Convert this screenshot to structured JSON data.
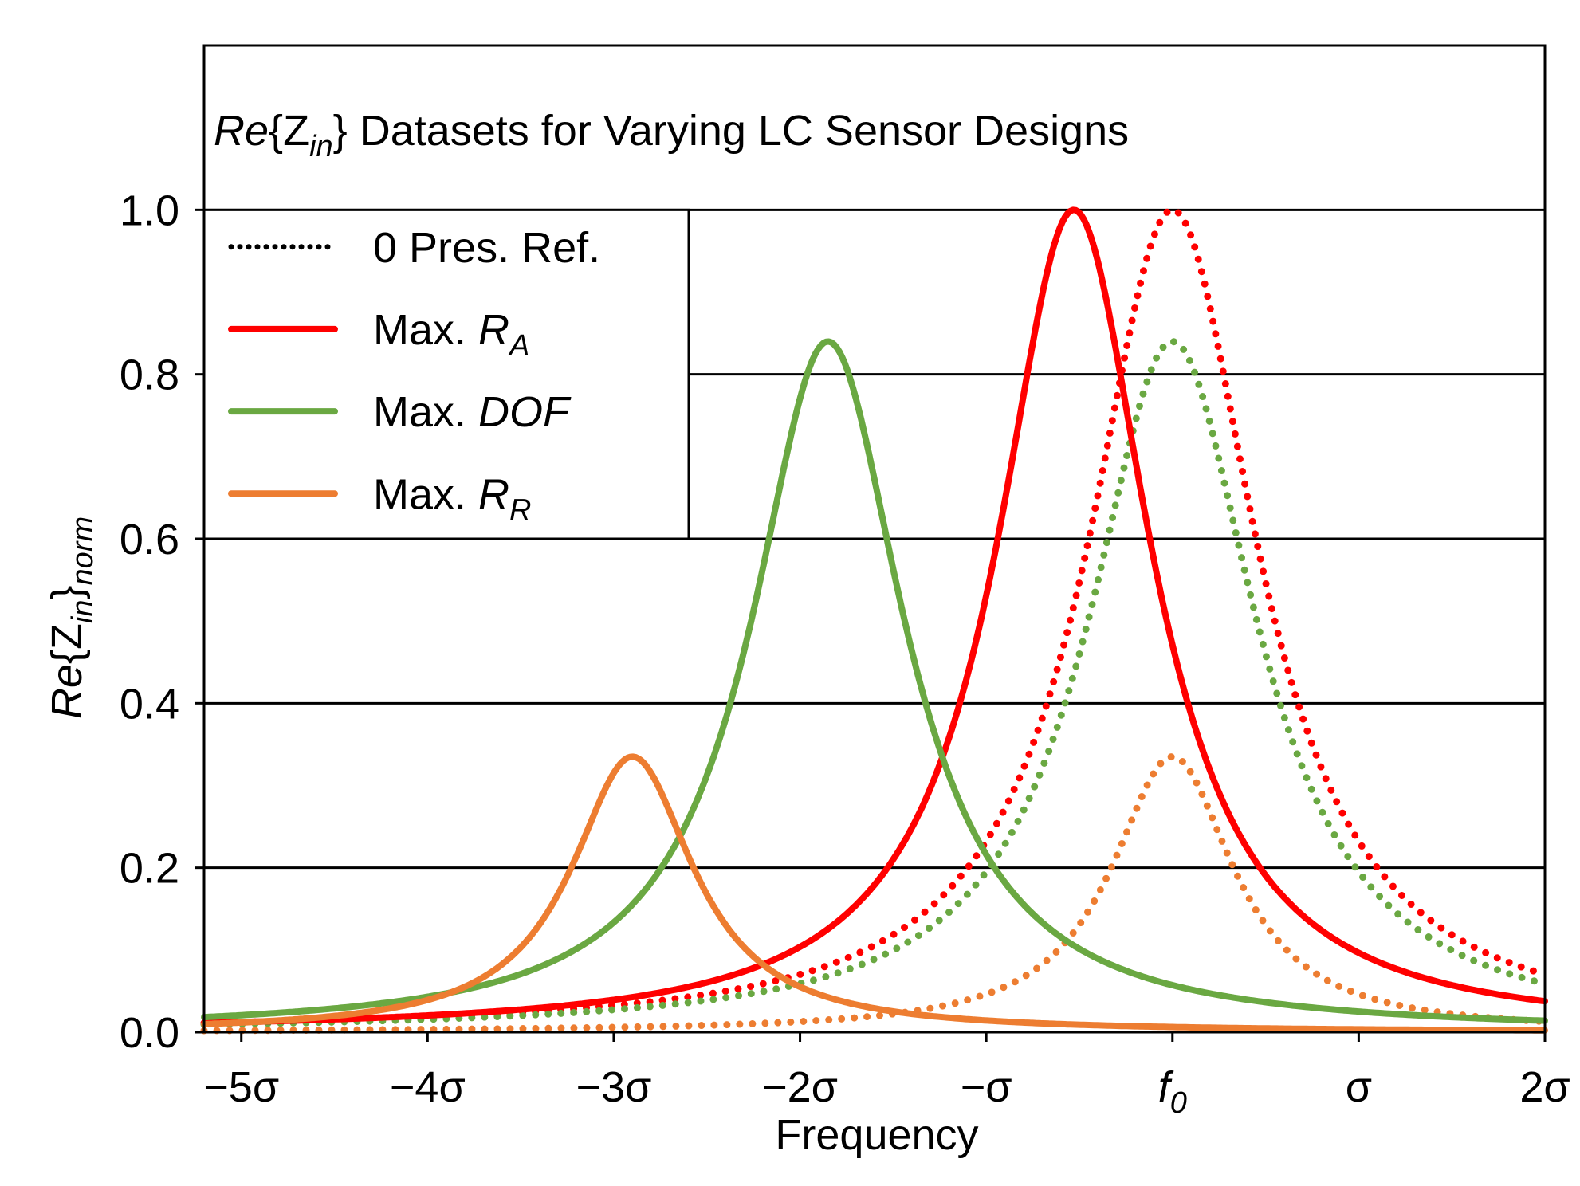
{
  "chart_data": {
    "type": "line",
    "title_parts": {
      "re": "Re",
      "open": "{Z",
      "sub": "in",
      "close": "}",
      "rest": " Datasets for Varying LC Sensor Designs"
    },
    "xlabel": "Frequency",
    "ylabel_parts": {
      "re": "Re",
      "open": "{Z",
      "sub": "in",
      "close": "}",
      "sub2": "norm"
    },
    "xlim": [
      -5.2,
      2.0
    ],
    "ylim": [
      0.0,
      1.2
    ],
    "x_ticks": [
      {
        "value": -5,
        "label": "−5σ"
      },
      {
        "value": -4,
        "label": "−4σ"
      },
      {
        "value": -3,
        "label": "−3σ"
      },
      {
        "value": -2,
        "label": "−2σ"
      },
      {
        "value": -1,
        "label": "−σ"
      },
      {
        "value": 0,
        "label": "f",
        "sub": "0"
      },
      {
        "value": 1,
        "label": "σ"
      },
      {
        "value": 2,
        "label": "2σ"
      }
    ],
    "y_ticks": [
      {
        "value": 0.0,
        "label": "0.0"
      },
      {
        "value": 0.2,
        "label": "0.2"
      },
      {
        "value": 0.4,
        "label": "0.4"
      },
      {
        "value": 0.6,
        "label": "0.6"
      },
      {
        "value": 0.8,
        "label": "0.8"
      },
      {
        "value": 1.0,
        "label": "1.0"
      }
    ],
    "gridlines_y": [
      0.2,
      0.4,
      0.6,
      0.8,
      1.0
    ],
    "legend_position": "top-left",
    "legend": [
      {
        "text": "0 Pres. Ref.",
        "sub": "",
        "italic": false,
        "color": "#000000",
        "dash": "dotted"
      },
      {
        "text": "Max. ",
        "em": "R",
        "sub": "A",
        "italic": true,
        "color": "#ff0000",
        "dash": "solid"
      },
      {
        "text": "Max. ",
        "em": "DOF",
        "sub": "",
        "italic": true,
        "color": "#6aa842",
        "dash": "solid"
      },
      {
        "text": "Max. ",
        "em": "R",
        "sub": "R",
        "italic": true,
        "color": "#ed7d31",
        "dash": "solid"
      }
    ],
    "series": [
      {
        "name": "0 Pres. Ref. (Max. R_A)",
        "color": "#ff0000",
        "style": "dotted",
        "peak_x": 0.0,
        "peak_y": 1.0,
        "half_width": 0.55
      },
      {
        "name": "0 Pres. Ref. (Max. DOF)",
        "color": "#6aa842",
        "style": "dotted",
        "peak_x": 0.0,
        "peak_y": 0.84,
        "half_width": 0.55
      },
      {
        "name": "0 Pres. Ref. (Max. R_R)",
        "color": "#ed7d31",
        "style": "dotted",
        "peak_x": 0.0,
        "peak_y": 0.335,
        "half_width": 0.4
      },
      {
        "name": "Max. R_A",
        "color": "#ff0000",
        "style": "solid",
        "peak_x": -0.53,
        "peak_y": 1.0,
        "half_width": 0.5
      },
      {
        "name": "Max. DOF",
        "color": "#6aa842",
        "style": "solid",
        "peak_x": -1.85,
        "peak_y": 0.84,
        "half_width": 0.5
      },
      {
        "name": "Max. R_R",
        "color": "#ed7d31",
        "style": "solid",
        "peak_x": -2.9,
        "peak_y": 0.335,
        "half_width": 0.4
      }
    ]
  }
}
